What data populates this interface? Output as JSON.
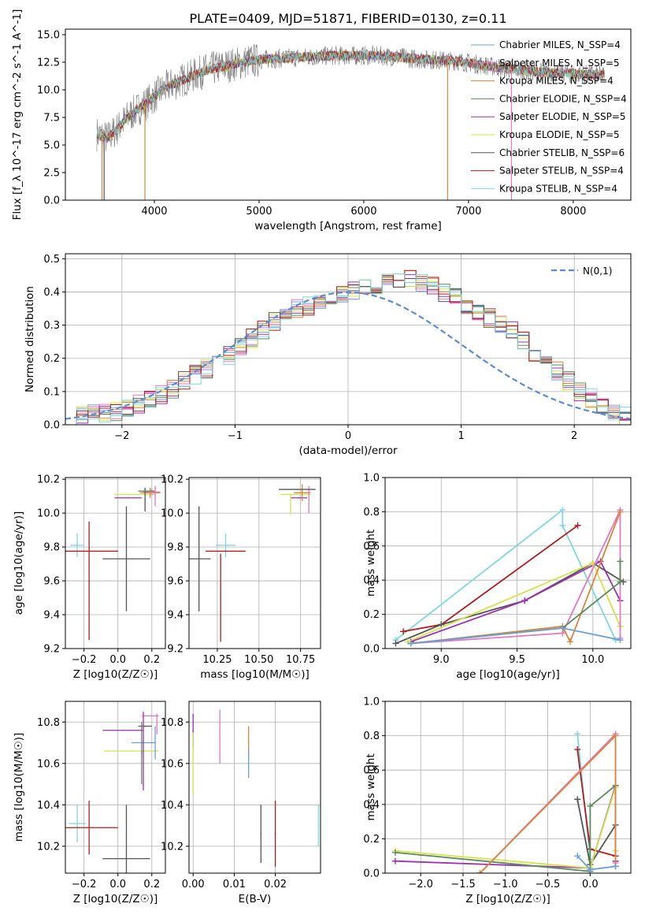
{
  "figure": {
    "title": "PLATE=0409, MJD=51871, FIBERID=0130, z=0.11"
  },
  "colors": {
    "chabrier_miles": "#6aa0d8",
    "salpeter_miles": "#e377c2",
    "kroupa_miles": "#d9853b",
    "chabrier_elodie": "#5b8a5b",
    "salpeter_elodie": "#9b30b0",
    "kroupa_elodie": "#d4e34a",
    "chabrier_stelib": "#555555",
    "salpeter_stelib": "#b01c1c",
    "kroupa_stelib": "#7fd8dc",
    "gaussian": "#5b8bd6",
    "grid": "#b0b0b0"
  },
  "chart_data": [
    {
      "id": "spectrum",
      "type": "line",
      "title": "PLATE=0409, MJD=51871, FIBERID=0130, z=0.11",
      "xlabel": "wavelength [Angstrom, rest frame]",
      "ylabel": "Flux [f_λ 10^-17 erg cm^-2 s^-1 A^-1]",
      "xlim": [
        3150,
        8550
      ],
      "ylim": [
        0,
        15.5
      ],
      "xticks": [
        4000,
        5000,
        6000,
        7000,
        8000
      ],
      "yticks": [
        0.0,
        2.5,
        5.0,
        7.5,
        10.0,
        12.5,
        15.0
      ],
      "grid": false,
      "legend_position": "right",
      "continuum": {
        "x": [
          3450,
          3550,
          3650,
          3750,
          3850,
          3950,
          4050,
          4150,
          4300,
          4500,
          4700,
          4900,
          5100,
          5300,
          5500,
          5700,
          5900,
          6100,
          6300,
          6500,
          6700,
          6900,
          7100,
          7300,
          7500,
          7700,
          7900,
          8100,
          8300
        ],
        "y": [
          6.0,
          5.6,
          6.5,
          7.6,
          8.3,
          9.0,
          9.8,
          10.4,
          11.0,
          11.8,
          12.2,
          12.6,
          12.8,
          12.9,
          13.0,
          13.1,
          13.1,
          13.1,
          13.0,
          12.8,
          12.7,
          12.6,
          12.3,
          12.0,
          11.8,
          11.6,
          11.5,
          11.4,
          11.3
        ]
      },
      "series": [
        {
          "name": "Chabrier MILES, N_SSP=4",
          "color_key": "chabrier_miles"
        },
        {
          "name": "Salpeter MILES, N_SSP=5",
          "color_key": "salpeter_miles"
        },
        {
          "name": "Kroupa MILES, N_SSP=4",
          "color_key": "kroupa_miles"
        },
        {
          "name": "Chabrier ELODIE, N_SSP=4",
          "color_key": "chabrier_elodie"
        },
        {
          "name": "Salpeter ELODIE, N_SSP=5",
          "color_key": "salpeter_elodie"
        },
        {
          "name": "Kroupa ELODIE, N_SSP=5",
          "color_key": "kroupa_elodie"
        },
        {
          "name": "Chabrier STELIB, N_SSP=6",
          "color_key": "chabrier_stelib"
        },
        {
          "name": "Salpeter STELIB, N_SSP=4",
          "color_key": "salpeter_stelib"
        },
        {
          "name": "Kroupa STELIB, N_SSP=4",
          "color_key": "kroupa_stelib"
        }
      ],
      "spikes": [
        {
          "x": 3500,
          "color_key": "kroupa_miles"
        },
        {
          "x": 3520,
          "color_key": "chabrier_stelib"
        },
        {
          "x": 3910,
          "color_key": "kroupa_miles"
        },
        {
          "x": 6800,
          "color_key": "kroupa_miles"
        },
        {
          "x": 7410,
          "color_key": "salpeter_miles"
        }
      ]
    },
    {
      "id": "residuals",
      "type": "line",
      "xlabel": "(data-model)/error",
      "ylabel": "Normed distribution",
      "xlim": [
        -2.5,
        2.5
      ],
      "ylim": [
        0,
        0.515
      ],
      "xticks": [
        -2,
        -1,
        0,
        1,
        2
      ],
      "yticks": [
        0.0,
        0.1,
        0.2,
        0.3,
        0.4,
        0.5
      ],
      "grid": true,
      "legend_position": "top-right",
      "legend": [
        "N(0,1)"
      ],
      "bins": {
        "start": -2.5,
        "width": 0.1
      },
      "histogram_envelope": [
        0.02,
        0.025,
        0.03,
        0.035,
        0.04,
        0.05,
        0.06,
        0.075,
        0.09,
        0.11,
        0.13,
        0.15,
        0.17,
        0.19,
        0.21,
        0.235,
        0.26,
        0.285,
        0.31,
        0.33,
        0.35,
        0.36,
        0.37,
        0.38,
        0.39,
        0.4,
        0.41,
        0.42,
        0.43,
        0.44,
        0.44,
        0.43,
        0.42,
        0.4,
        0.38,
        0.36,
        0.34,
        0.32,
        0.3,
        0.28,
        0.25,
        0.22,
        0.19,
        0.16,
        0.13,
        0.1,
        0.08,
        0.06,
        0.04,
        0.025
      ],
      "gaussian": {
        "mean": 0,
        "sigma": 1,
        "color_key": "gaussian"
      }
    },
    {
      "id": "age_vs_z",
      "type": "scatter",
      "xlabel": "Z [log10(Z/Z☉)]",
      "ylabel": "age  [log10(age/yr)]",
      "xlim": [
        -0.31,
        0.28
      ],
      "ylim": [
        9.2,
        10.21
      ],
      "xticks": [
        -0.2,
        0.0,
        0.2
      ],
      "yticks": [
        9.2,
        9.4,
        9.6,
        9.8,
        10.0,
        10.2
      ],
      "grid": true,
      "points": [
        {
          "x": -0.24,
          "y": 9.81,
          "xerr": 0.04,
          "yerr": 0.07,
          "color_key": "kroupa_stelib"
        },
        {
          "x": -0.17,
          "y": 9.775,
          "xerr": 0.17,
          "yerr": 0.0,
          "color_key": "salpeter_stelib"
        },
        {
          "x": -0.17,
          "y": 9.6,
          "xerr": 0.0,
          "yerr": 0.35,
          "color_key": "salpeter_stelib"
        },
        {
          "x": 0.05,
          "y": 9.73,
          "xerr": 0.14,
          "yerr": 0.31,
          "color_key": "chabrier_stelib"
        },
        {
          "x": 0.1,
          "y": 10.11,
          "xerr": 0.12,
          "yerr": 0.0,
          "color_key": "kroupa_elodie"
        },
        {
          "x": 0.06,
          "y": 10.09,
          "xerr": 0.08,
          "yerr": 0.0,
          "color_key": "salpeter_elodie"
        },
        {
          "x": 0.19,
          "y": 10.12,
          "xerr": 0.06,
          "yerr": 0.03,
          "color_key": "kroupa_miles"
        },
        {
          "x": 0.2,
          "y": 10.125,
          "xerr": 0.05,
          "yerr": 0.02,
          "color_key": "salpeter_miles"
        },
        {
          "x": 0.16,
          "y": 10.08,
          "xerr": 0.0,
          "yerr": 0.07,
          "color_key": "chabrier_stelib"
        },
        {
          "x": 0.17,
          "y": 10.13,
          "xerr": 0.05,
          "yerr": 0.0,
          "color_key": "chabrier_elodie"
        },
        {
          "x": 0.22,
          "y": 10.1,
          "xerr": 0.0,
          "yerr": 0.06,
          "color_key": "salpeter_miles"
        }
      ]
    },
    {
      "id": "age_vs_mass",
      "type": "scatter",
      "xlabel": "mass [log10(M/M☉)]",
      "ylabel": "",
      "xlim": [
        10.08,
        10.87
      ],
      "ylim": [
        9.2,
        10.21
      ],
      "xticks": [
        10.25,
        10.5,
        10.75
      ],
      "xticklabels": [
        "10.25",
        "10.50",
        "10.75"
      ],
      "yticks": [
        9.2,
        9.4,
        9.6,
        9.8,
        10.0,
        10.2
      ],
      "grid": true,
      "points": [
        {
          "x": 10.3,
          "y": 9.81,
          "xerr": 0.06,
          "yerr": 0.07,
          "color_key": "kroupa_stelib"
        },
        {
          "x": 10.3,
          "y": 9.775,
          "xerr": 0.12,
          "yerr": 0.0,
          "color_key": "salpeter_stelib"
        },
        {
          "x": 10.27,
          "y": 9.5,
          "xerr": 0.0,
          "yerr": 0.26,
          "color_key": "salpeter_stelib"
        },
        {
          "x": 10.14,
          "y": 9.73,
          "xerr": 0.07,
          "yerr": 0.31,
          "color_key": "chabrier_stelib"
        },
        {
          "x": 10.72,
          "y": 10.11,
          "xerr": 0.09,
          "yerr": 0.0,
          "color_key": "kroupa_elodie"
        },
        {
          "x": 10.74,
          "y": 10.09,
          "xerr": 0.05,
          "yerr": 0.0,
          "color_key": "salpeter_elodie"
        },
        {
          "x": 10.76,
          "y": 10.12,
          "xerr": 0.05,
          "yerr": 0.05,
          "color_key": "kroupa_miles"
        },
        {
          "x": 10.8,
          "y": 10.08,
          "xerr": 0.0,
          "yerr": 0.08,
          "color_key": "salpeter_miles"
        },
        {
          "x": 10.73,
          "y": 10.14,
          "xerr": 0.11,
          "yerr": 0.0,
          "color_key": "chabrier_stelib"
        },
        {
          "x": 10.69,
          "y": 10.05,
          "xerr": 0.0,
          "yerr": 0.06,
          "color_key": "kroupa_elodie"
        }
      ]
    },
    {
      "id": "massweight_vs_age",
      "type": "line",
      "xlabel": "age  [log10(age/yr)]",
      "ylabel": "mass weight",
      "xlim": [
        8.63,
        10.25
      ],
      "ylim": [
        0,
        1.0
      ],
      "xticks": [
        9.0,
        9.5,
        10.0
      ],
      "yticks": [
        0.0,
        0.2,
        0.4,
        0.6,
        0.8,
        1.0
      ],
      "grid": true,
      "series": [
        {
          "color_key": "kroupa_stelib",
          "x": [
            8.7,
            9.8,
            9.8,
            10.15
          ],
          "y": [
            0.05,
            0.81,
            0.72,
            0.05
          ]
        },
        {
          "color_key": "salpeter_stelib",
          "x": [
            8.75,
            9.0,
            9.9
          ],
          "y": [
            0.1,
            0.14,
            0.72
          ]
        },
        {
          "color_key": "chabrier_stelib",
          "x": [
            8.7,
            9.0,
            9.55,
            10.0,
            10.2
          ],
          "y": [
            0.03,
            0.14,
            0.28,
            0.5,
            0.39
          ]
        },
        {
          "color_key": "salpeter_elodie",
          "x": [
            8.8,
            9.55,
            10.05,
            10.18
          ],
          "y": [
            0.04,
            0.28,
            0.51,
            0.28
          ]
        },
        {
          "color_key": "kroupa_elodie",
          "x": [
            8.78,
            10.0,
            10.18
          ],
          "y": [
            0.04,
            0.5,
            0.13
          ]
        },
        {
          "color_key": "salpeter_miles",
          "x": [
            8.8,
            9.8,
            10.18,
            10.18
          ],
          "y": [
            0.03,
            0.09,
            0.81,
            0.06
          ]
        },
        {
          "color_key": "kroupa_miles",
          "x": [
            8.8,
            9.8,
            9.85,
            10.18
          ],
          "y": [
            0.03,
            0.13,
            0.04,
            0.8
          ]
        },
        {
          "color_key": "chabrier_elodie",
          "x": [
            8.8,
            9.8,
            10.18,
            10.18
          ],
          "y": [
            0.03,
            0.12,
            0.39,
            0.51
          ]
        },
        {
          "color_key": "chabrier_miles",
          "x": [
            8.8,
            9.8,
            10.18
          ],
          "y": [
            0.03,
            0.12,
            0.05
          ]
        }
      ]
    },
    {
      "id": "mass_vs_z",
      "type": "scatter",
      "xlabel": "Z [log10(Z/Z☉)]",
      "ylabel": "mass [log10(M/M☉)]",
      "xlim": [
        -0.31,
        0.28
      ],
      "ylim": [
        10.07,
        10.9
      ],
      "xticks": [
        -0.2,
        0.0,
        0.2
      ],
      "yticks": [
        10.2,
        10.4,
        10.6,
        10.8
      ],
      "grid": true,
      "points": [
        {
          "x": -0.24,
          "y": 10.31,
          "xerr": 0.05,
          "yerr": 0.09,
          "color_key": "kroupa_stelib"
        },
        {
          "x": -0.17,
          "y": 10.29,
          "xerr": 0.17,
          "yerr": 0.13,
          "color_key": "salpeter_stelib"
        },
        {
          "x": 0.05,
          "y": 10.14,
          "xerr": 0.14,
          "yerr": 0.26,
          "color_key": "chabrier_stelib"
        },
        {
          "x": 0.08,
          "y": 10.66,
          "xerr": 0.16,
          "yerr": 0.0,
          "color_key": "kroupa_elodie"
        },
        {
          "x": 0.03,
          "y": 10.76,
          "xerr": 0.12,
          "yerr": 0.0,
          "color_key": "salpeter_elodie"
        },
        {
          "x": 0.15,
          "y": 10.7,
          "xerr": 0.07,
          "yerr": 0.0,
          "color_key": "chabrier_miles"
        },
        {
          "x": 0.19,
          "y": 10.83,
          "xerr": 0.05,
          "yerr": 0.0,
          "color_key": "salpeter_miles"
        },
        {
          "x": 0.16,
          "y": 10.78,
          "xerr": 0.04,
          "yerr": 0.0,
          "color_key": "chabrier_stelib"
        },
        {
          "x": 0.22,
          "y": 10.7,
          "xerr": 0.0,
          "yerr": 0.08,
          "color_key": "chabrier_miles"
        },
        {
          "x": 0.14,
          "y": 10.65,
          "xerr": 0.0,
          "yerr": 0.15,
          "color_key": "chabrier_elodie"
        },
        {
          "x": 0.23,
          "y": 10.79,
          "xerr": 0.0,
          "yerr": 0.05,
          "color_key": "salpeter_miles"
        },
        {
          "x": 0.15,
          "y": 10.66,
          "xerr": 0.0,
          "yerr": 0.19,
          "color_key": "salpeter_elodie"
        }
      ]
    },
    {
      "id": "mass_vs_ebv",
      "type": "scatter",
      "xlabel": "E(B-V)",
      "ylabel": "",
      "xlim": [
        -0.001,
        0.031
      ],
      "ylim": [
        10.07,
        10.9
      ],
      "xticks": [
        0.0,
        0.01,
        0.02
      ],
      "xticklabels": [
        "0.00",
        "0.01",
        "0.02"
      ],
      "yticks": [
        10.2,
        10.4,
        10.6,
        10.8
      ],
      "grid": true,
      "points": [
        {
          "x": 0.0,
          "y": 10.76,
          "xerr": 0.0,
          "yerr": 0.08,
          "color_key": "salpeter_elodie"
        },
        {
          "x": 0.0,
          "y": 10.6,
          "xerr": 0.0,
          "yerr": 0.15,
          "color_key": "kroupa_elodie"
        },
        {
          "x": 0.0065,
          "y": 10.73,
          "xerr": 0.0,
          "yerr": 0.13,
          "color_key": "salpeter_miles"
        },
        {
          "x": 0.0135,
          "y": 10.7,
          "xerr": 0.0,
          "yerr": 0.08,
          "color_key": "kroupa_miles"
        },
        {
          "x": 0.0135,
          "y": 10.6,
          "xerr": 0.0,
          "yerr": 0.07,
          "color_key": "chabrier_miles"
        },
        {
          "x": 0.0165,
          "y": 10.26,
          "xerr": 0.0,
          "yerr": 0.14,
          "color_key": "chabrier_stelib"
        },
        {
          "x": 0.02,
          "y": 10.26,
          "xerr": 0.0,
          "yerr": 0.16,
          "color_key": "salpeter_stelib"
        },
        {
          "x": 0.0305,
          "y": 10.3,
          "xerr": 0.0,
          "yerr": 0.1,
          "color_key": "kroupa_stelib"
        }
      ]
    },
    {
      "id": "massweight_vs_z",
      "type": "line",
      "xlabel": "Z [log10(Z/Z☉)]",
      "ylabel": "mass weight",
      "xlim": [
        -2.42,
        0.48
      ],
      "ylim": [
        0,
        1.0
      ],
      "xticks": [
        -2.0,
        -1.5,
        -1.0,
        -0.5,
        0.0
      ],
      "yticks": [
        0.0,
        0.2,
        0.4,
        0.6,
        0.8,
        1.0
      ],
      "grid": true,
      "series": [
        {
          "color_key": "kroupa_stelib",
          "x": [
            -0.15,
            0.0,
            0.0
          ],
          "y": [
            0.81,
            0.08,
            0.05
          ]
        },
        {
          "color_key": "salpeter_stelib",
          "x": [
            -0.15,
            0.0,
            0.3
          ],
          "y": [
            0.72,
            0.14,
            0.1
          ]
        },
        {
          "color_key": "chabrier_stelib",
          "x": [
            -0.15,
            0.0,
            0.3,
            0.3
          ],
          "y": [
            0.43,
            0.05,
            0.28,
            0.04
          ]
        },
        {
          "color_key": "salpeter_elodie",
          "x": [
            -2.3,
            0.0,
            0.3,
            0.3
          ],
          "y": [
            0.07,
            0.03,
            0.51,
            0.07
          ]
        },
        {
          "color_key": "kroupa_elodie",
          "x": [
            -2.3,
            0.0,
            0.3,
            0.3
          ],
          "y": [
            0.13,
            0.03,
            0.5,
            0.13
          ]
        },
        {
          "color_key": "chabrier_elodie",
          "x": [
            -2.3,
            0.0,
            0.0,
            0.3,
            0.3
          ],
          "y": [
            0.12,
            0.01,
            0.39,
            0.51,
            0.04
          ]
        },
        {
          "color_key": "salpeter_miles",
          "x": [
            -1.3,
            0.3,
            0.3
          ],
          "y": [
            0.0,
            0.81,
            0.06
          ]
        },
        {
          "color_key": "kroupa_miles",
          "x": [
            -1.3,
            0.3,
            0.3
          ],
          "y": [
            0.0,
            0.8,
            0.04
          ]
        },
        {
          "color_key": "chabrier_miles",
          "x": [
            -0.15,
            0.0,
            0.3
          ],
          "y": [
            0.1,
            0.02,
            0.04
          ]
        }
      ]
    }
  ]
}
